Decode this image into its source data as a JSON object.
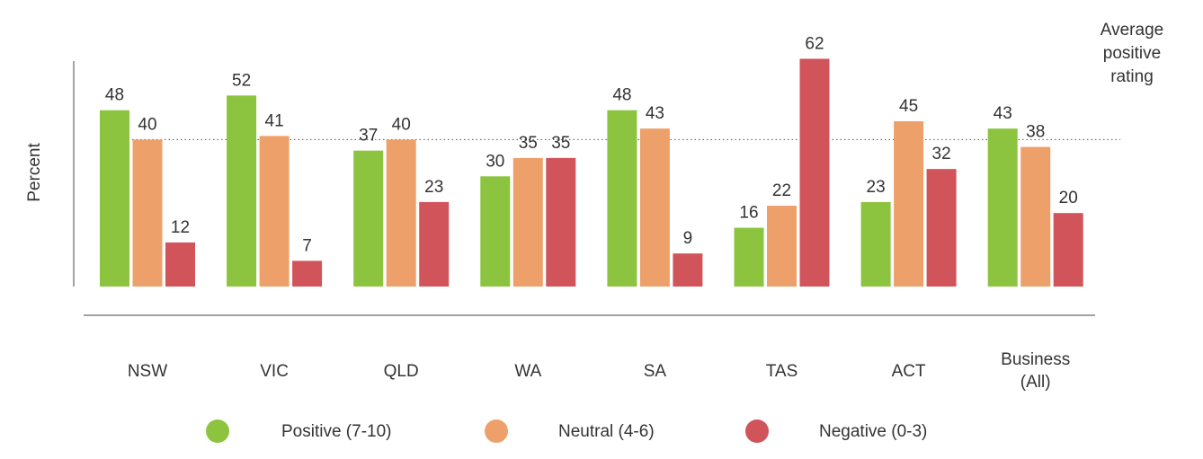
{
  "chart_data": {
    "type": "bar",
    "ylabel": "Percent",
    "reference_line_label": "Average positive rating",
    "reference_line_label_lines": [
      "Average",
      "positive",
      "rating"
    ],
    "reference_line_value": 40,
    "ylim": [
      0,
      67
    ],
    "grid": false,
    "legend_position": "bottom",
    "categories": [
      "NSW",
      "VIC",
      "QLD",
      "WA",
      "SA",
      "TAS",
      "ACT",
      "Business (All)"
    ],
    "category_label_lines": [
      [
        "NSW"
      ],
      [
        "VIC"
      ],
      [
        "QLD"
      ],
      [
        "WA"
      ],
      [
        "SA"
      ],
      [
        "TAS"
      ],
      [
        "ACT"
      ],
      [
        "Business",
        "(All)"
      ]
    ],
    "series": [
      {
        "name": "Positive (7-10)",
        "color": "#8cc43f",
        "values": [
          48,
          52,
          37,
          30,
          48,
          16,
          23,
          43
        ]
      },
      {
        "name": "Neutral (4-6)",
        "color": "#eda06a",
        "values": [
          40,
          41,
          40,
          35,
          43,
          22,
          45,
          38
        ]
      },
      {
        "name": "Negative (0-3)",
        "color": "#d0545a",
        "values": [
          12,
          7,
          23,
          35,
          9,
          62,
          32,
          20
        ]
      }
    ]
  }
}
